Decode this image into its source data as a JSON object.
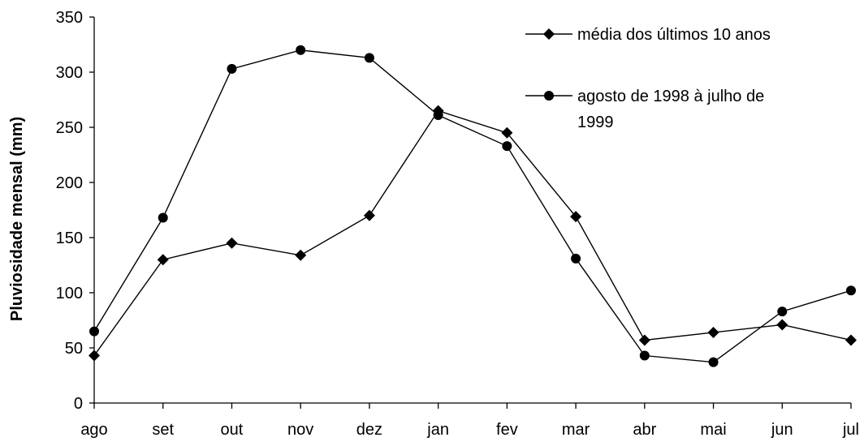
{
  "chart_data": {
    "type": "line",
    "ylabel": "Pluviosidade mensal (mm)",
    "xlabel": "",
    "ylim": [
      0,
      350
    ],
    "yticks": [
      0,
      50,
      100,
      150,
      200,
      250,
      300,
      350
    ],
    "categories": [
      "ago",
      "set",
      "out",
      "nov",
      "dez",
      "jan",
      "fev",
      "mar",
      "abr",
      "mai",
      "jun",
      "jul"
    ],
    "legend_position": "top-right",
    "grid": false,
    "series": [
      {
        "name": "média dos últimos 10 anos",
        "marker": "diamond",
        "color": "#000000",
        "values": [
          43,
          130,
          145,
          134,
          170,
          265,
          245,
          169,
          57,
          64,
          71,
          57
        ]
      },
      {
        "name": "agosto de 1998 à julho de 1999",
        "legend_lines": [
          "agosto de 1998 à julho de",
          "1999"
        ],
        "marker": "circle",
        "color": "#000000",
        "values": [
          65,
          168,
          303,
          320,
          313,
          261,
          233,
          131,
          43,
          37,
          83,
          102
        ]
      }
    ]
  }
}
